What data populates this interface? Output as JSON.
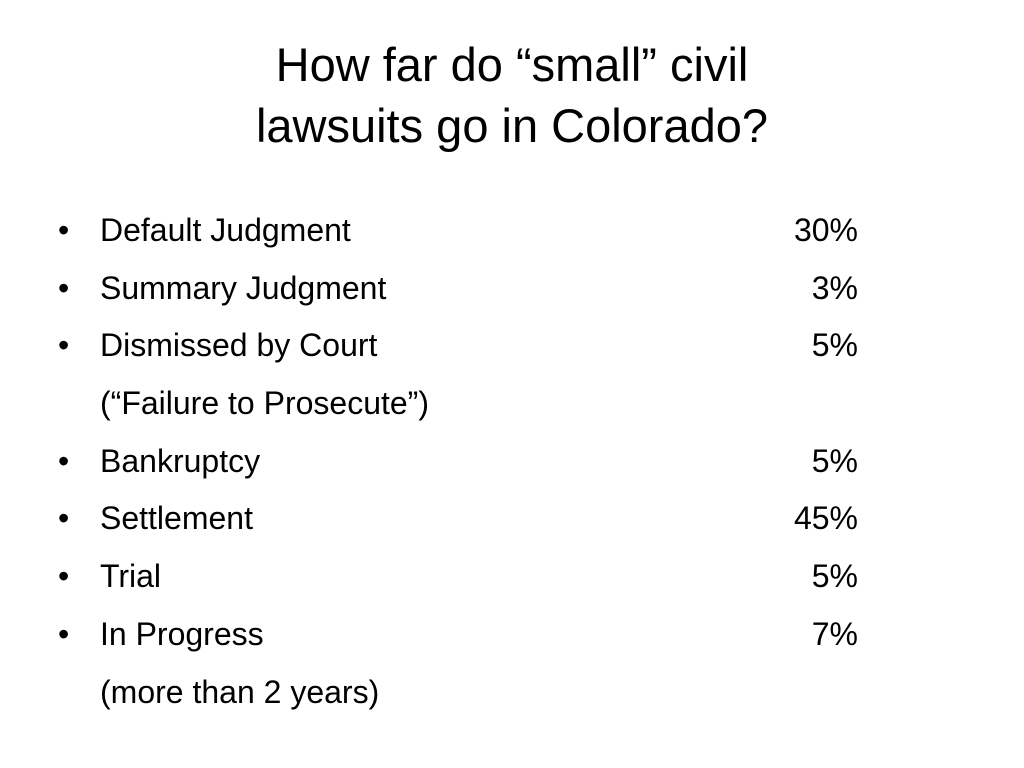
{
  "slide": {
    "title_line1": "How far do “small” civil",
    "title_line2": "lawsuits go in Colorado?",
    "bullet_glyph": "•",
    "items": [
      {
        "label": "Default Judgment",
        "value": "30%",
        "bullet": true
      },
      {
        "label": "Summary Judgment",
        "value": "3%",
        "bullet": true
      },
      {
        "label": "Dismissed by Court",
        "value": "5%",
        "bullet": true
      },
      {
        "label": "(“Failure to Prosecute”)",
        "value": "",
        "bullet": false
      },
      {
        "label": "Bankruptcy",
        "value": "5%",
        "bullet": true
      },
      {
        "label": "Settlement",
        "value": "45%",
        "bullet": true
      },
      {
        "label": "Trial",
        "value": "5%",
        "bullet": true
      },
      {
        "label": "In Progress",
        "value": "7%",
        "bullet": true
      },
      {
        "label": "(more than 2 years)",
        "value": "",
        "bullet": false
      }
    ]
  }
}
